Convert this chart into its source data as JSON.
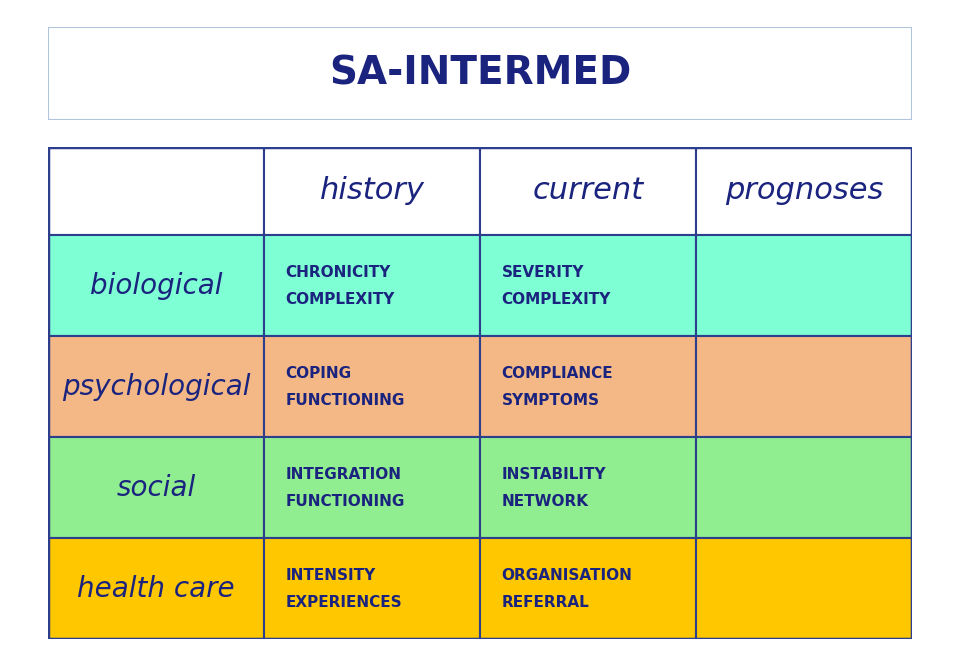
{
  "title": "SA-INTERMED",
  "title_color": "#1a237e",
  "title_fontsize": 28,
  "background_color": "#ffffff",
  "title_box_border": "#b0c4de",
  "col_headers": [
    "",
    "history",
    "current",
    "prognoses"
  ],
  "col_header_fontsize": 22,
  "col_header_text_color": "#1a237e",
  "row_labels": [
    "biological",
    "psychological",
    "social",
    "health care"
  ],
  "row_label_fontsize": 20,
  "row_label_text_color": "#1a237e",
  "row_colors": [
    "#7fffd4",
    "#f4b886",
    "#90ee90",
    "#ffc700"
  ],
  "cell_text_fontsize": 11,
  "cell_text_color": "#1a237e",
  "grid_color": "#2c3e8c",
  "cell_contents": [
    [
      "CHRONICITY\nCOMPLEXITY",
      "SEVERITY\nCOMPLEXITY",
      ""
    ],
    [
      "COPING\nFUNCTIONING",
      "COMPLIANCE\nSYMPTOMS",
      ""
    ],
    [
      "INTEGRATION\nFUNCTIONING",
      "INSTABILITY\nNETWORK",
      ""
    ],
    [
      "INTENSITY\nEXPERIENCES",
      "ORGANISATION\nREFERRAL",
      ""
    ]
  ],
  "figsize": [
    9.6,
    6.66
  ],
  "dpi": 100
}
